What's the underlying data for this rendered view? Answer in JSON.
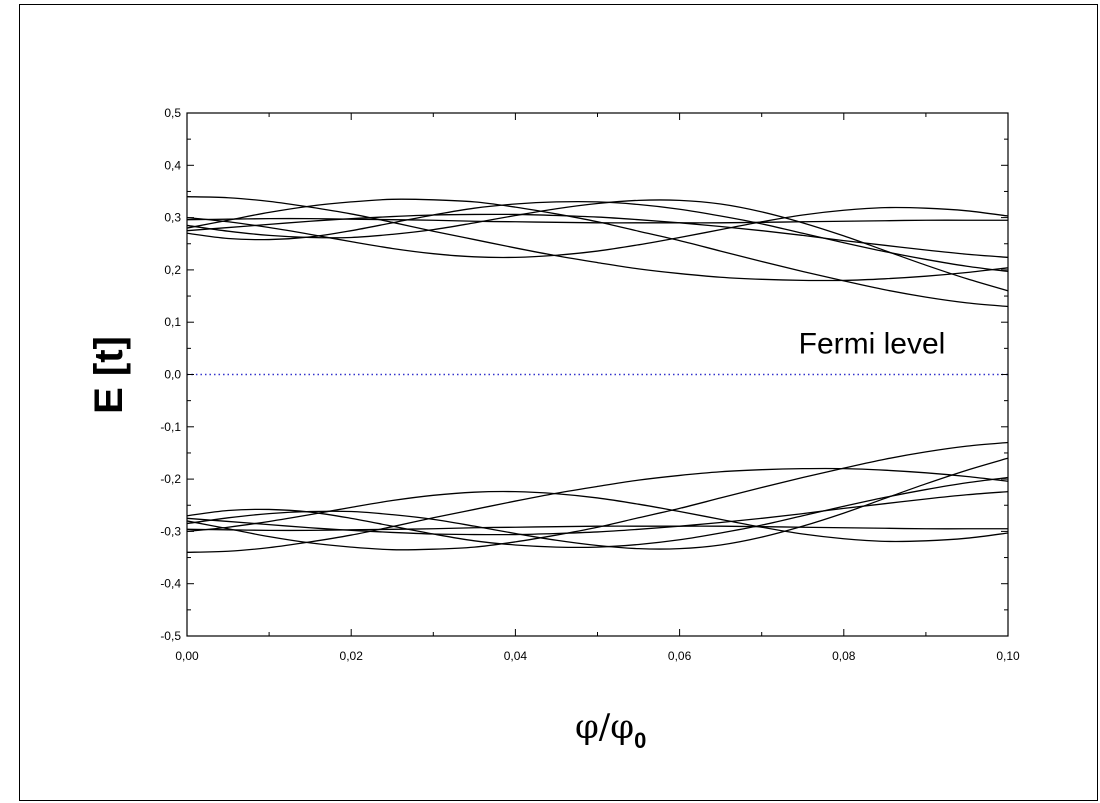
{
  "chart_data": {
    "type": "line",
    "title": "",
    "ylabel": "E [t]",
    "xlabel": "φ/φ0",
    "xlabel_main": "φ/φ",
    "xlabel_sub": "0",
    "xlim": [
      0.0,
      0.1
    ],
    "ylim": [
      -0.5,
      0.5
    ],
    "xticks": [
      0.0,
      0.02,
      0.04,
      0.06,
      0.08,
      0.1
    ],
    "xtick_labels": [
      "0,00",
      "0,02",
      "0,04",
      "0,06",
      "0,08",
      "0,10"
    ],
    "yticks": [
      -0.5,
      -0.4,
      -0.3,
      -0.2,
      -0.1,
      0.0,
      0.1,
      0.2,
      0.3,
      0.4,
      0.5
    ],
    "ytick_labels": [
      "-0,5",
      "-0,4",
      "-0,3",
      "-0,2",
      "-0,1",
      "0,0",
      "0,1",
      "0,2",
      "0,3",
      "0,4",
      "0,5"
    ],
    "grid": false,
    "legend": "none",
    "annotations": [
      {
        "text": "Fermi level",
        "x": 0.0745,
        "y": 0.04
      }
    ],
    "colors": {
      "bands": "#000000",
      "fermi": "#3333cc"
    },
    "x": [
      0.0,
      0.005,
      0.01,
      0.015,
      0.02,
      0.025,
      0.03,
      0.035,
      0.04,
      0.045,
      0.05,
      0.055,
      0.06,
      0.065,
      0.07,
      0.075,
      0.08,
      0.085,
      0.09,
      0.095,
      0.1
    ],
    "series": [
      {
        "values": [
          0.34,
          0.338,
          0.331,
          0.32,
          0.307,
          0.291,
          0.274,
          0.258,
          0.242,
          0.227,
          0.214,
          0.202,
          0.193,
          0.186,
          0.182,
          0.18,
          0.18,
          0.183,
          0.188,
          0.195,
          0.204
        ]
      },
      {
        "values": [
          0.28,
          0.295,
          0.31,
          0.322,
          0.33,
          0.335,
          0.334,
          0.33,
          0.32,
          0.307,
          0.292,
          0.274,
          0.256,
          0.236,
          0.216,
          0.197,
          0.179,
          0.162,
          0.148,
          0.137,
          0.13
        ]
      },
      {
        "values": [
          0.27,
          0.26,
          0.258,
          0.263,
          0.275,
          0.29,
          0.305,
          0.318,
          0.326,
          0.33,
          0.33,
          0.325,
          0.316,
          0.303,
          0.288,
          0.27,
          0.252,
          0.235,
          0.22,
          0.207,
          0.197
        ]
      },
      {
        "values": [
          0.3,
          0.292,
          0.281,
          0.268,
          0.254,
          0.241,
          0.231,
          0.225,
          0.224,
          0.228,
          0.236,
          0.248,
          0.262,
          0.277,
          0.292,
          0.305,
          0.314,
          0.319,
          0.318,
          0.313,
          0.303
        ]
      },
      {
        "values": [
          0.285,
          0.274,
          0.266,
          0.262,
          0.262,
          0.268,
          0.277,
          0.29,
          0.304,
          0.317,
          0.327,
          0.333,
          0.333,
          0.326,
          0.311,
          0.29,
          0.265,
          0.237,
          0.209,
          0.183,
          0.16
        ]
      },
      {
        "values": [
          0.296,
          0.297,
          0.298,
          0.298,
          0.297,
          0.296,
          0.295,
          0.293,
          0.292,
          0.291,
          0.29,
          0.29,
          0.29,
          0.29,
          0.291,
          0.292,
          0.293,
          0.294,
          0.295,
          0.295,
          0.295
        ]
      },
      {
        "values": [
          0.275,
          0.281,
          0.287,
          0.293,
          0.298,
          0.302,
          0.305,
          0.306,
          0.306,
          0.304,
          0.301,
          0.296,
          0.29,
          0.283,
          0.275,
          0.266,
          0.256,
          0.247,
          0.238,
          0.23,
          0.224
        ]
      },
      {
        "values": [
          -0.34,
          -0.338,
          -0.331,
          -0.32,
          -0.307,
          -0.291,
          -0.274,
          -0.258,
          -0.242,
          -0.227,
          -0.214,
          -0.202,
          -0.193,
          -0.186,
          -0.182,
          -0.18,
          -0.18,
          -0.183,
          -0.188,
          -0.195,
          -0.204
        ]
      },
      {
        "values": [
          -0.28,
          -0.295,
          -0.31,
          -0.322,
          -0.33,
          -0.335,
          -0.334,
          -0.33,
          -0.32,
          -0.307,
          -0.292,
          -0.274,
          -0.256,
          -0.236,
          -0.216,
          -0.197,
          -0.179,
          -0.162,
          -0.148,
          -0.137,
          -0.13
        ]
      },
      {
        "values": [
          -0.27,
          -0.26,
          -0.258,
          -0.263,
          -0.275,
          -0.29,
          -0.305,
          -0.318,
          -0.326,
          -0.33,
          -0.33,
          -0.325,
          -0.316,
          -0.303,
          -0.288,
          -0.27,
          -0.252,
          -0.235,
          -0.22,
          -0.207,
          -0.197
        ]
      },
      {
        "values": [
          -0.3,
          -0.292,
          -0.281,
          -0.268,
          -0.254,
          -0.241,
          -0.231,
          -0.225,
          -0.224,
          -0.228,
          -0.236,
          -0.248,
          -0.262,
          -0.277,
          -0.292,
          -0.305,
          -0.314,
          -0.319,
          -0.318,
          -0.313,
          -0.303
        ]
      },
      {
        "values": [
          -0.285,
          -0.274,
          -0.266,
          -0.262,
          -0.262,
          -0.268,
          -0.277,
          -0.29,
          -0.304,
          -0.317,
          -0.327,
          -0.333,
          -0.333,
          -0.326,
          -0.311,
          -0.29,
          -0.265,
          -0.237,
          -0.209,
          -0.183,
          -0.16
        ]
      },
      {
        "values": [
          -0.296,
          -0.297,
          -0.298,
          -0.298,
          -0.297,
          -0.296,
          -0.295,
          -0.293,
          -0.292,
          -0.291,
          -0.29,
          -0.29,
          -0.29,
          -0.29,
          -0.291,
          -0.292,
          -0.293,
          -0.294,
          -0.295,
          -0.295,
          -0.295
        ]
      },
      {
        "values": [
          -0.275,
          -0.281,
          -0.287,
          -0.293,
          -0.298,
          -0.302,
          -0.305,
          -0.306,
          -0.306,
          -0.304,
          -0.301,
          -0.296,
          -0.29,
          -0.283,
          -0.275,
          -0.266,
          -0.256,
          -0.247,
          -0.238,
          -0.23,
          -0.224
        ]
      },
      {
        "name": "Fermi level",
        "values": [
          0,
          0,
          0,
          0,
          0,
          0,
          0,
          0,
          0,
          0,
          0,
          0,
          0,
          0,
          0,
          0,
          0,
          0,
          0,
          0,
          0
        ],
        "style": "dotted"
      }
    ]
  }
}
